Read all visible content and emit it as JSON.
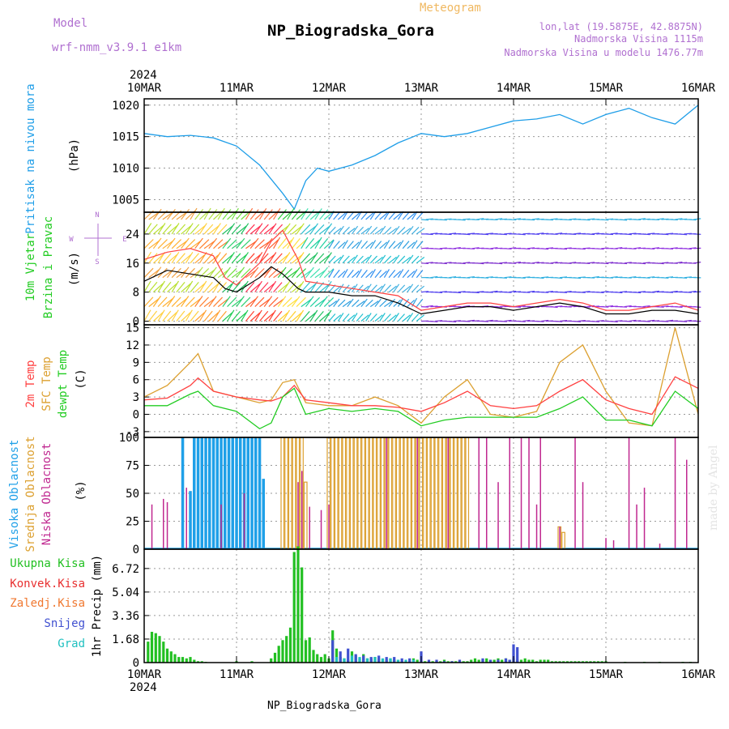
{
  "header": {
    "model_label": "Model",
    "model_name": "wrf-nmm_v3.9.1 e1km",
    "meteogram_label": "Meteogram",
    "station_title": "NP_Biogradska_Gora",
    "lonlat": "lon,lat (19.5875E, 42.8875N)",
    "altitude": "Nadmorska Visina 1115m",
    "model_altitude": "Nadmorska Visina u modelu 1476.77m",
    "footer_station": "NP_Biogradska_Gora",
    "signature": "made by Angel"
  },
  "colors": {
    "pressure": "#1f9ee8",
    "wind_speed": "#000000",
    "gust": "#ff4040",
    "temp2m": "#ff4040",
    "sfc_temp": "#dca030",
    "dewpoint": "#22cc22",
    "high_cloud": "#1fa0e8",
    "mid_cloud": "#dca030",
    "low_cloud": "#c02890",
    "total_precip": "#22c022",
    "conv_precip": "#e83030",
    "snow": "#4050d0",
    "grad": "#20c0c0",
    "purple_text": "#b070d0",
    "orange_text": "#f0b860"
  },
  "chart_data": [
    {
      "type": "line",
      "name": "pressure",
      "ylabel": "Pritisak na nivou mora",
      "yunit": "(hPa)",
      "ylim": [
        1003,
        1021
      ],
      "yticks": [
        1005,
        1010,
        1015,
        1020
      ],
      "grid": true,
      "series": [
        {
          "name": "",
          "x_hours": [
            0,
            6,
            12,
            18,
            24,
            30,
            36,
            39,
            42,
            45,
            48,
            54,
            60,
            66,
            72,
            78,
            84,
            90,
            96,
            102,
            108,
            114,
            120,
            126,
            132,
            138,
            144
          ],
          "values": [
            1015.5,
            1015.0,
            1015.2,
            1014.8,
            1013.5,
            1010.5,
            1006.0,
            1003.5,
            1008.0,
            1010.0,
            1009.5,
            1010.5,
            1012.0,
            1014.0,
            1015.5,
            1015.0,
            1015.5,
            1016.5,
            1017.5,
            1017.8,
            1018.5,
            1017.0,
            1018.5,
            1019.5,
            1018.0,
            1017.0,
            1020.0
          ]
        }
      ]
    },
    {
      "type": "line",
      "name": "wind",
      "ylabel": "10m Vjetar Brzina i Pravac",
      "yunit": "(m/s)",
      "ylim": [
        -1,
        30
      ],
      "yticks": [
        0,
        8,
        16,
        24
      ],
      "grid": true,
      "compass": [
        "N",
        "W",
        "E",
        "S"
      ],
      "series": [
        {
          "name": "",
          "x_hours": [
            0,
            6,
            12,
            18,
            21,
            24,
            30,
            33,
            36,
            40,
            42,
            48,
            54,
            60,
            66,
            72,
            78,
            84,
            90,
            96,
            102,
            108,
            114,
            120,
            126,
            132,
            138,
            144
          ],
          "values": [
            11,
            14,
            13,
            12,
            9,
            8,
            12,
            15,
            13,
            9,
            8,
            8,
            7,
            7,
            5,
            2,
            3,
            4,
            4,
            3,
            4,
            5,
            4,
            2,
            2,
            3,
            3,
            2
          ]
        },
        {
          "name": "",
          "x_hours": [
            0,
            6,
            12,
            18,
            21,
            24,
            30,
            33,
            36,
            40,
            42,
            48,
            54,
            60,
            66,
            72,
            78,
            84,
            90,
            96,
            102,
            108,
            114,
            120,
            126,
            132,
            138,
            144
          ],
          "values": [
            17,
            19,
            20,
            18,
            12,
            10,
            16,
            22,
            25,
            17,
            11,
            10,
            9,
            8,
            7,
            3,
            4,
            5,
            5,
            4,
            5,
            6,
            5,
            3,
            3,
            4,
            5,
            3
          ]
        }
      ]
    },
    {
      "type": "line",
      "name": "temperature",
      "ylabel": "2m Temp",
      "yunit": "(C)",
      "ylim": [
        -4,
        15.5
      ],
      "yticks": [
        -3,
        0,
        3,
        6,
        9,
        12,
        15
      ],
      "grid": true,
      "series": [
        {
          "name": "2m Temp",
          "x_hours": [
            0,
            6,
            12,
            14,
            18,
            24,
            30,
            33,
            36,
            39,
            42,
            48,
            54,
            60,
            66,
            72,
            78,
            84,
            90,
            96,
            102,
            108,
            114,
            120,
            126,
            132,
            138,
            144
          ],
          "values": [
            2.5,
            2.8,
            5,
            6.3,
            4,
            3,
            2.5,
            2.3,
            3,
            5,
            2.5,
            2,
            1.5,
            1.5,
            1.2,
            0.5,
            2,
            4,
            1.5,
            1,
            1.5,
            4,
            6,
            2.5,
            1,
            0,
            6.5,
            4.5
          ]
        },
        {
          "name": "SFC Temp",
          "x_hours": [
            0,
            6,
            12,
            14,
            18,
            24,
            30,
            33,
            36,
            39,
            42,
            48,
            54,
            60,
            66,
            72,
            78,
            84,
            90,
            96,
            102,
            108,
            114,
            120,
            126,
            132,
            138,
            144
          ],
          "values": [
            3,
            5,
            9,
            10.5,
            4,
            3,
            2,
            2.5,
            5.5,
            6,
            2,
            1.5,
            1.5,
            3,
            1.5,
            -1.5,
            3,
            6,
            0,
            -0.5,
            0.5,
            9,
            12,
            4,
            -1.5,
            -2,
            15,
            0
          ]
        },
        {
          "name": "dewpt Temp",
          "x_hours": [
            0,
            6,
            12,
            14,
            18,
            24,
            30,
            33,
            36,
            39,
            42,
            48,
            54,
            60,
            66,
            72,
            78,
            84,
            90,
            96,
            102,
            108,
            114,
            120,
            126,
            132,
            138,
            144
          ],
          "values": [
            1.5,
            1.5,
            3.5,
            4,
            1.5,
            0.5,
            -2.5,
            -1.5,
            3,
            4.5,
            0,
            1,
            0.5,
            1,
            0.5,
            -2,
            -1,
            -0.5,
            -0.5,
            -0.5,
            -0.5,
            1,
            3,
            -1,
            -1,
            -2,
            4,
            1
          ]
        }
      ]
    },
    {
      "type": "bar",
      "name": "clouds",
      "ylabel": "Visoka Oblacnost",
      "yunit": "(%)",
      "ylim": [
        0,
        100
      ],
      "yticks": [
        0,
        25,
        50,
        75,
        100
      ],
      "grid": true,
      "series": [
        {
          "name": "Visoka Oblacnost",
          "x_hours": [
            10,
            12,
            13,
            14,
            15,
            16,
            17,
            18,
            19,
            20,
            21,
            22,
            23,
            24,
            25,
            26,
            27,
            28,
            29,
            30,
            31
          ],
          "values": [
            100,
            52,
            100,
            100,
            100,
            100,
            100,
            100,
            100,
            100,
            100,
            100,
            100,
            100,
            100,
            100,
            100,
            100,
            100,
            100,
            63
          ]
        },
        {
          "name": "Srednja Oblacnost",
          "x_hours": [
            36,
            37,
            38,
            39,
            40,
            41,
            42,
            48,
            49,
            50,
            51,
            52,
            53,
            54,
            55,
            56,
            57,
            58,
            59,
            60,
            61,
            62,
            63,
            64,
            65,
            66,
            67,
            68,
            69,
            70,
            71,
            72,
            73,
            74,
            75,
            76,
            77,
            78,
            79,
            80,
            81,
            82,
            83,
            84,
            108,
            109
          ],
          "values": [
            100,
            100,
            100,
            100,
            100,
            100,
            60,
            100,
            100,
            100,
            100,
            100,
            100,
            100,
            100,
            100,
            100,
            100,
            100,
            100,
            100,
            100,
            100,
            100,
            100,
            100,
            100,
            100,
            100,
            100,
            100,
            100,
            100,
            100,
            100,
            100,
            100,
            100,
            100,
            100,
            100,
            100,
            100,
            100,
            20,
            15
          ]
        },
        {
          "name": "Niska Oblacnost",
          "x_hours": [
            2,
            5,
            6,
            11,
            20,
            26,
            40,
            41,
            43,
            46,
            48,
            63,
            71,
            79,
            87,
            89,
            92,
            95,
            98,
            100,
            102,
            103,
            108,
            112,
            114,
            120,
            122,
            126,
            128,
            130,
            134,
            138,
            141
          ],
          "values": [
            40,
            45,
            42,
            55,
            40,
            50,
            60,
            70,
            38,
            35,
            40,
            100,
            100,
            100,
            100,
            100,
            60,
            100,
            100,
            100,
            40,
            100,
            20,
            100,
            60,
            10,
            8,
            100,
            40,
            55,
            5,
            100,
            80
          ]
        }
      ]
    },
    {
      "type": "bar",
      "name": "precipitation",
      "ylabel": "1hr Precip (mm)",
      "ylim": [
        0,
        8.1
      ],
      "yticks": [
        0,
        1.68,
        3.36,
        5.04,
        6.72
      ],
      "grid": true,
      "legend": [
        "Ukupna Kisa",
        "Konvek.Kisa",
        "Zaledj.Kisa",
        "Snijeg",
        "Grad"
      ],
      "series": [
        {
          "name": "Ukupna Kisa",
          "x_hours": [
            1,
            2,
            3,
            4,
            5,
            6,
            7,
            8,
            9,
            10,
            11,
            12,
            13,
            14,
            15,
            16,
            24,
            28,
            33,
            34,
            35,
            36,
            37,
            38,
            39,
            40,
            41,
            42,
            43,
            44,
            45,
            46,
            47,
            48,
            49,
            50,
            51,
            52,
            53,
            54,
            55,
            56,
            57,
            58,
            59,
            60,
            61,
            62,
            63,
            64,
            65,
            66,
            67,
            68,
            69,
            70,
            71,
            72,
            73,
            74,
            75,
            76,
            77,
            78,
            79,
            80,
            81,
            82,
            83,
            84,
            85,
            86,
            87,
            88,
            89,
            90,
            91,
            92,
            93,
            94,
            95,
            96,
            97,
            98,
            99,
            100,
            101,
            102,
            103,
            104,
            105,
            106,
            107,
            108,
            109,
            110,
            111,
            112,
            113,
            114,
            115,
            116,
            117,
            118,
            119,
            120,
            125,
            130,
            134,
            140,
            142
          ],
          "values": [
            1.5,
            2.2,
            2.1,
            1.9,
            1.5,
            1.0,
            0.8,
            0.6,
            0.4,
            0.4,
            0.3,
            0.4,
            0.2,
            0.1,
            0.1,
            0.05,
            0.1,
            0.1,
            0.3,
            0.7,
            1.2,
            1.6,
            1.9,
            2.5,
            7.9,
            8.3,
            6.8,
            1.6,
            1.8,
            0.9,
            0.6,
            0.4,
            0.6,
            0.3,
            2.3,
            1.0,
            0.4,
            0.3,
            0.2,
            0.8,
            0.5,
            0.3,
            0.6,
            0.3,
            0.3,
            0.4,
            0.3,
            0.2,
            0.2,
            0.3,
            0.2,
            0.2,
            0.1,
            0.1,
            0.1,
            0.3,
            0.2,
            0.1,
            0.1,
            0.1,
            0.1,
            0.1,
            0.1,
            0.2,
            0.1,
            0.1,
            0.1,
            0.1,
            0.1,
            0.1,
            0.2,
            0.3,
            0.2,
            0.2,
            0.3,
            0.2,
            0.2,
            0.3,
            0.2,
            0.3,
            0.2,
            0.3,
            0.2,
            0.2,
            0.3,
            0.2,
            0.2,
            0.1,
            0.2,
            0.2,
            0.2,
            0.1,
            0.1,
            0.1,
            0.1,
            0.1,
            0.1,
            0.1,
            0.1,
            0.1,
            0.1,
            0.1,
            0.1,
            0.1,
            0.1,
            0.1,
            0.05,
            0.05,
            0.05,
            0.05,
            0.05
          ]
        },
        {
          "name": "Snijeg",
          "x_hours": [
            49,
            51,
            53,
            55,
            57,
            59,
            61,
            63,
            65,
            67,
            69,
            72,
            74,
            76,
            78,
            80,
            82,
            88,
            90,
            92,
            94,
            95,
            96,
            97
          ],
          "values": [
            1.6,
            0.8,
            1.0,
            0.6,
            0.5,
            0.4,
            0.5,
            0.4,
            0.4,
            0.3,
            0.3,
            0.8,
            0.2,
            0.2,
            0.1,
            0.1,
            0.2,
            0.3,
            0.2,
            0.2,
            0.3,
            0.2,
            1.3,
            1.1
          ]
        },
        {
          "name": "Grad",
          "x_hours": [
            50,
            52,
            54,
            56,
            58,
            60,
            62,
            64,
            66,
            68,
            70
          ],
          "values": [
            0.4,
            0.3,
            0.5,
            0.4,
            0.3,
            0.4,
            0.3,
            0.3,
            0.2,
            0.2,
            0.2
          ]
        }
      ]
    }
  ],
  "x_axis": {
    "year": "2024",
    "labels": [
      "10MAR",
      "11MAR",
      "12MAR",
      "13MAR",
      "14MAR",
      "15MAR",
      "16MAR"
    ],
    "hours_total": 144
  },
  "panel_labels": {
    "pressure": [
      "Pritisak na nivou mora",
      "(hPa)"
    ],
    "wind": [
      "10m Vjetar",
      "Brzina i Pravac",
      "(m/s)"
    ],
    "temp": [
      "2m Temp",
      "SFC Temp",
      "dewpt Temp",
      "(C)"
    ],
    "cloud": [
      "Visoka Oblacnost",
      "Srednja Oblacnost",
      "Niska Oblacnost",
      "(%)"
    ],
    "precip_legend": [
      "Ukupna Kisa",
      "Konvek.Kisa",
      "Zaledj.Kisa",
      "Snijeg",
      "Grad"
    ],
    "precip_unit": "1hr Precip (mm)"
  }
}
